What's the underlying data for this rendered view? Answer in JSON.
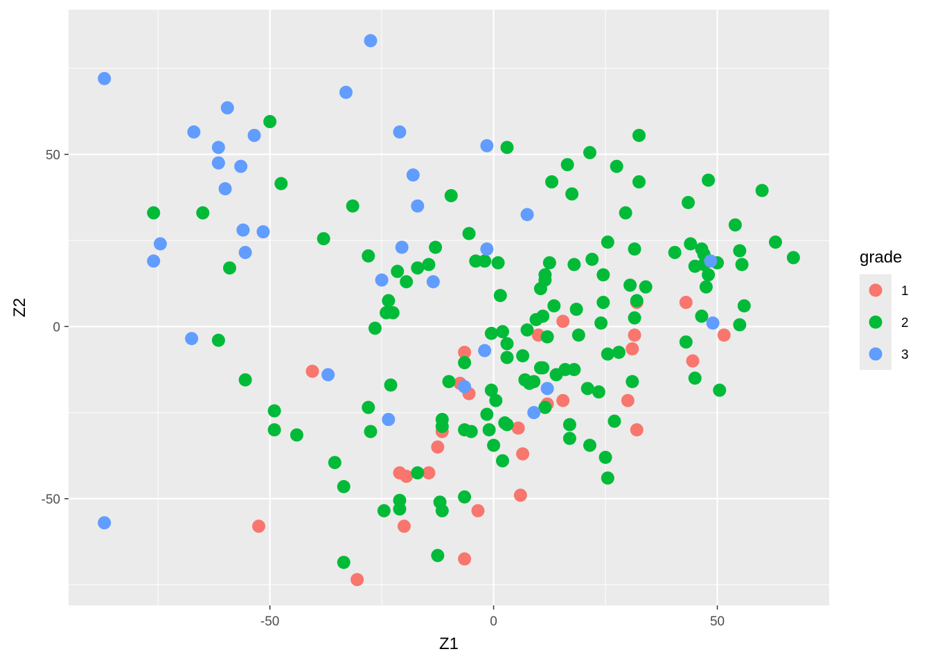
{
  "chart_data": {
    "type": "scatter",
    "xlabel": "Z1",
    "ylabel": "Z2",
    "xlim": [
      -95,
      75
    ],
    "ylim": [
      -81,
      92
    ],
    "x_ticks": [
      -50,
      0,
      50
    ],
    "y_ticks": [
      -50,
      0,
      50
    ],
    "x_tick_labels": [
      "-50",
      "0",
      "50"
    ],
    "y_tick_labels": [
      "-50",
      "0",
      "50"
    ],
    "grid": true,
    "legend": {
      "title": "grade",
      "position": "right"
    },
    "colors": {
      "panel": "#EBEBEB",
      "grid": "#FFFFFF",
      "1": "#F8766D",
      "2": "#00BA38",
      "3": "#619CFF"
    },
    "series": [
      {
        "name": "1",
        "color": "#F8766D",
        "points": [
          [
            -52.5,
            -58
          ],
          [
            -40.5,
            -13
          ],
          [
            -30.5,
            -73.5
          ],
          [
            -21,
            -42.5
          ],
          [
            -20,
            -58
          ],
          [
            -19.5,
            -43.5
          ],
          [
            -14.5,
            -42.5
          ],
          [
            -12.5,
            -35
          ],
          [
            -11.5,
            -30.5
          ],
          [
            -7.5,
            -16.5
          ],
          [
            -6.5,
            -67.5
          ],
          [
            -6.5,
            -7.5
          ],
          [
            -5.5,
            -19.5
          ],
          [
            -3.5,
            -53.5
          ],
          [
            5.5,
            -29.5
          ],
          [
            6.5,
            -37
          ],
          [
            6,
            -49
          ],
          [
            10,
            -2.5
          ],
          [
            12,
            -22.5
          ],
          [
            15.5,
            -21.5
          ],
          [
            15.5,
            1.5
          ],
          [
            30,
            -21.5
          ],
          [
            31,
            -6.5
          ],
          [
            31.5,
            -2.5
          ],
          [
            32,
            -30
          ],
          [
            32,
            7
          ],
          [
            43,
            7
          ],
          [
            44.5,
            -10
          ],
          [
            51.5,
            -2.5
          ]
        ]
      },
      {
        "name": "2",
        "color": "#00BA38",
        "points": [
          [
            -76,
            33
          ],
          [
            -65,
            33
          ],
          [
            -61.5,
            -4
          ],
          [
            -59,
            17
          ],
          [
            -55.5,
            -15.5
          ],
          [
            -50,
            59.5
          ],
          [
            -49,
            -24.5
          ],
          [
            -49,
            -30
          ],
          [
            -47.5,
            41.5
          ],
          [
            -44,
            -31.5
          ],
          [
            -38,
            25.5
          ],
          [
            -35.5,
            -39.5
          ],
          [
            -33.5,
            -46.5
          ],
          [
            -33.5,
            -68.5
          ],
          [
            -31.5,
            35
          ],
          [
            -28,
            20.5
          ],
          [
            -28,
            -23.5
          ],
          [
            -27.5,
            -30.5
          ],
          [
            -26.5,
            -0.5
          ],
          [
            -24.5,
            -53.5
          ],
          [
            -24,
            4
          ],
          [
            -23.5,
            7.5
          ],
          [
            -23,
            -17
          ],
          [
            -22.5,
            4
          ],
          [
            -21.5,
            16
          ],
          [
            -21,
            -50.5
          ],
          [
            -21,
            -53
          ],
          [
            -19.5,
            13
          ],
          [
            -17,
            17
          ],
          [
            -17,
            -42.5
          ],
          [
            -14.5,
            18
          ],
          [
            -13,
            23
          ],
          [
            -12.5,
            -66.5
          ],
          [
            -12,
            -51
          ],
          [
            -11.5,
            -29
          ],
          [
            -11.5,
            -53.5
          ],
          [
            -11.5,
            -27
          ],
          [
            -10,
            -16
          ],
          [
            -9.5,
            38
          ],
          [
            -6.5,
            -49.5
          ],
          [
            -6.5,
            -10.5
          ],
          [
            -6.5,
            -30
          ],
          [
            -5.5,
            27
          ],
          [
            -5,
            -30.5
          ],
          [
            -4,
            19
          ],
          [
            -2,
            19
          ],
          [
            -1.5,
            -25.5
          ],
          [
            -1,
            -30
          ],
          [
            -0.5,
            -2
          ],
          [
            -0.5,
            -18.5
          ],
          [
            0,
            -34.5
          ],
          [
            0.5,
            -21.5
          ],
          [
            1,
            18.5
          ],
          [
            1.5,
            9
          ],
          [
            2,
            -1.5
          ],
          [
            2,
            -39
          ],
          [
            2.5,
            -28
          ],
          [
            3,
            -5
          ],
          [
            3,
            -9
          ],
          [
            3,
            -28.5
          ],
          [
            3,
            52
          ],
          [
            6.5,
            -8.5
          ],
          [
            7,
            -15.5
          ],
          [
            7.5,
            -1
          ],
          [
            8,
            -16.5
          ],
          [
            9,
            -16
          ],
          [
            9.5,
            2
          ],
          [
            10.5,
            11
          ],
          [
            10.5,
            -12
          ],
          [
            11,
            -12
          ],
          [
            11,
            3
          ],
          [
            11.5,
            13.5
          ],
          [
            11.5,
            15
          ],
          [
            11.5,
            -23.5
          ],
          [
            12,
            -3
          ],
          [
            12.5,
            18.5
          ],
          [
            13,
            42
          ],
          [
            13.5,
            6
          ],
          [
            14,
            -14
          ],
          [
            16,
            -12.5
          ],
          [
            16.5,
            47
          ],
          [
            17,
            -28.5
          ],
          [
            17,
            -32.5
          ],
          [
            17.5,
            38.5
          ],
          [
            18,
            18
          ],
          [
            18,
            -12.5
          ],
          [
            18.5,
            5
          ],
          [
            19,
            -2.5
          ],
          [
            21,
            -18
          ],
          [
            21.5,
            -34.5
          ],
          [
            21.5,
            50.5
          ],
          [
            22,
            19.5
          ],
          [
            23.5,
            -19
          ],
          [
            24,
            1
          ],
          [
            24.5,
            7
          ],
          [
            24.5,
            15
          ],
          [
            25,
            -38
          ],
          [
            25.5,
            -8
          ],
          [
            25.5,
            24.5
          ],
          [
            25.5,
            -44
          ],
          [
            27,
            -27.5
          ],
          [
            27.5,
            46.5
          ],
          [
            28,
            -7.5
          ],
          [
            29.5,
            33
          ],
          [
            30.5,
            12
          ],
          [
            31,
            -16
          ],
          [
            31.5,
            2.5
          ],
          [
            31.5,
            22.5
          ],
          [
            32,
            7.5
          ],
          [
            32.5,
            55.5
          ],
          [
            32.5,
            42
          ],
          [
            34,
            11.5
          ],
          [
            40.5,
            21.5
          ],
          [
            43,
            -4.5
          ],
          [
            43.5,
            36
          ],
          [
            44,
            24
          ],
          [
            45,
            -15
          ],
          [
            45,
            17.5
          ],
          [
            46.5,
            3
          ],
          [
            46.5,
            22.5
          ],
          [
            47,
            21
          ],
          [
            47,
            18
          ],
          [
            47.5,
            11.5
          ],
          [
            48,
            15
          ],
          [
            48,
            42.5
          ],
          [
            50,
            18.5
          ],
          [
            50.5,
            -18.5
          ],
          [
            54,
            29.5
          ],
          [
            55,
            22
          ],
          [
            55,
            0.5
          ],
          [
            55.5,
            18
          ],
          [
            56,
            6
          ],
          [
            60,
            39.5
          ],
          [
            63,
            24.5
          ],
          [
            67,
            20
          ]
        ]
      },
      {
        "name": "3",
        "color": "#619CFF",
        "points": [
          [
            -87,
            72
          ],
          [
            -87,
            -57
          ],
          [
            -74.5,
            24
          ],
          [
            -76,
            19
          ],
          [
            -67,
            56.5
          ],
          [
            -67.5,
            -3.5
          ],
          [
            -61.5,
            52
          ],
          [
            -61.5,
            47.5
          ],
          [
            -60,
            40
          ],
          [
            -59.5,
            63.5
          ],
          [
            -56.5,
            46.5
          ],
          [
            -56,
            28
          ],
          [
            -55.5,
            21.5
          ],
          [
            -53.5,
            55.5
          ],
          [
            -51.5,
            27.5
          ],
          [
            -37,
            -14
          ],
          [
            -33,
            68
          ],
          [
            -27.5,
            83
          ],
          [
            -25,
            13.5
          ],
          [
            -23.5,
            -27
          ],
          [
            -21,
            56.5
          ],
          [
            -20.5,
            23
          ],
          [
            -18,
            44
          ],
          [
            -17,
            35
          ],
          [
            -13.5,
            13
          ],
          [
            -6.5,
            -17.5
          ],
          [
            -2,
            -7
          ],
          [
            -1.5,
            22.5
          ],
          [
            -1.5,
            52.5
          ],
          [
            7.5,
            32.5
          ],
          [
            9,
            -25
          ],
          [
            12,
            -18
          ],
          [
            48.5,
            19
          ],
          [
            49,
            1
          ]
        ]
      }
    ]
  }
}
